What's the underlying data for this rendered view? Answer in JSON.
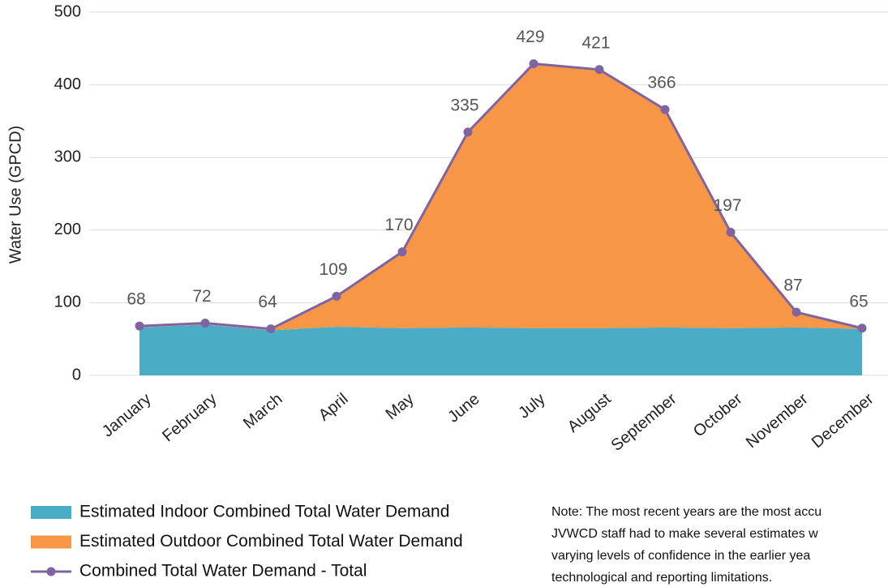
{
  "chart_data": {
    "type": "area",
    "y_label": "Water Use (GPCD)",
    "categories": [
      "January",
      "February",
      "March",
      "April",
      "May",
      "June",
      "July",
      "August",
      "September",
      "October",
      "November",
      "December"
    ],
    "series": [
      {
        "name": "Estimated Indoor Combined Total Water Demand",
        "color": "#4bacc6",
        "kind": "area",
        "values": [
          66,
          70,
          62,
          67,
          65,
          66,
          65,
          65,
          66,
          65,
          66,
          64
        ]
      },
      {
        "name": "Estimated Outdoor Combined Total Water Demand",
        "color": "#f79646",
        "kind": "area",
        "values": [
          2,
          2,
          2,
          42,
          105,
          269,
          364,
          356,
          300,
          132,
          21,
          1
        ]
      },
      {
        "name": "Combined Total Water Demand - Total",
        "color": "#8064a2",
        "kind": "line",
        "values": [
          68,
          72,
          64,
          109,
          170,
          335,
          429,
          421,
          366,
          197,
          87,
          65
        ]
      }
    ],
    "ylim": [
      0,
      500
    ],
    "yticks": [
      0,
      100,
      200,
      300,
      400,
      500
    ],
    "grid": true,
    "note": [
      "Note: The most recent years are the most accu",
      "JVWCD staff had to make several estimates w",
      "varying levels of confidence in the earlier yea",
      "technological and reporting limitations."
    ]
  }
}
